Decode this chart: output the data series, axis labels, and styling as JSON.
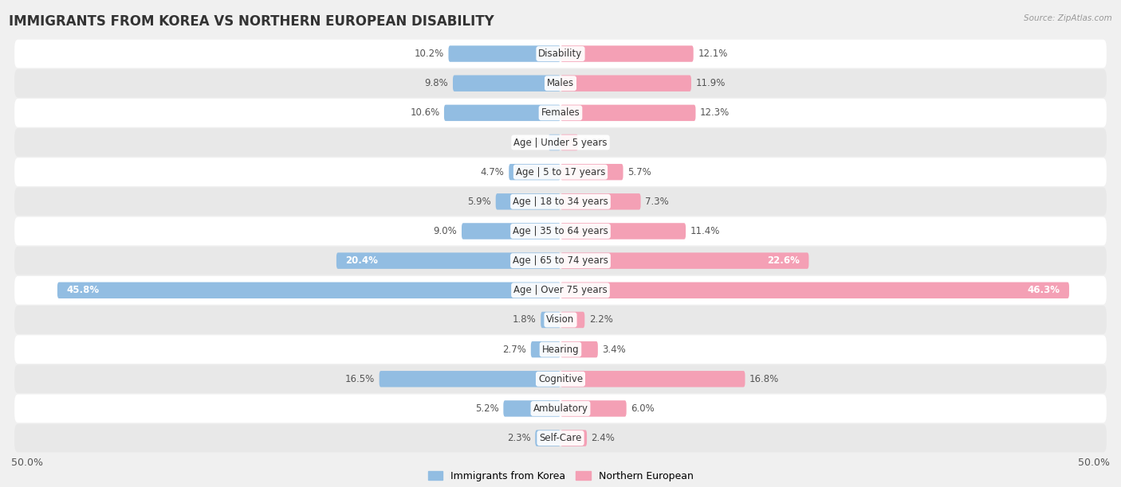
{
  "title": "IMMIGRANTS FROM KOREA VS NORTHERN EUROPEAN DISABILITY",
  "source": "Source: ZipAtlas.com",
  "categories": [
    "Disability",
    "Males",
    "Females",
    "Age | Under 5 years",
    "Age | 5 to 17 years",
    "Age | 18 to 34 years",
    "Age | 35 to 64 years",
    "Age | 65 to 74 years",
    "Age | Over 75 years",
    "Vision",
    "Hearing",
    "Cognitive",
    "Ambulatory",
    "Self-Care"
  ],
  "korea_values": [
    10.2,
    9.8,
    10.6,
    1.1,
    4.7,
    5.9,
    9.0,
    20.4,
    45.8,
    1.8,
    2.7,
    16.5,
    5.2,
    2.3
  ],
  "northern_values": [
    12.1,
    11.9,
    12.3,
    1.6,
    5.7,
    7.3,
    11.4,
    22.6,
    46.3,
    2.2,
    3.4,
    16.8,
    6.0,
    2.4
  ],
  "korea_color": "#92bde2",
  "northern_color": "#f4a0b5",
  "korea_label": "Immigrants from Korea",
  "northern_label": "Northern European",
  "axis_max": 50.0,
  "bg_color": "#f0f0f0",
  "row_bg_white": "#ffffff",
  "row_bg_gray": "#e8e8e8",
  "title_fontsize": 12,
  "label_fontsize": 9,
  "value_fontsize": 8.5,
  "category_fontsize": 8.5
}
